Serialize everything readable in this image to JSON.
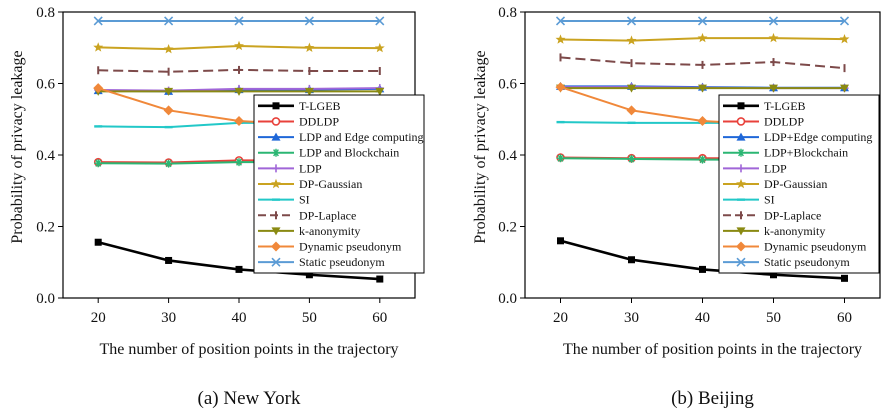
{
  "chart_data": [
    {
      "type": "line",
      "caption": "(a)  New York",
      "xlabel": "The number of position points in the trajectory",
      "ylabel": "Probability of privacy leakage",
      "x": [
        20,
        30,
        40,
        50,
        60
      ],
      "xticks": [
        20,
        30,
        40,
        50,
        60
      ],
      "yticks": [
        0.0,
        0.2,
        0.4,
        0.6,
        0.8
      ],
      "yticklabels": [
        "0.0",
        "0.2",
        "0.4",
        "0.6",
        "0.8"
      ],
      "xlim": [
        15,
        65
      ],
      "ylim": [
        0,
        0.8
      ],
      "legend_position": "right",
      "series": [
        {
          "name": "T-LGEB",
          "color": "#000000",
          "marker": "square",
          "values": [
            0.156,
            0.105,
            0.08,
            0.065,
            0.053
          ]
        },
        {
          "name": "DDLDP",
          "color": "#e8413b",
          "marker": "circle",
          "values": [
            0.38,
            0.379,
            0.385,
            0.385,
            0.385
          ]
        },
        {
          "name": "LDP and Edge computing",
          "color": "#1f67d8",
          "marker": "triangle",
          "values": [
            0.58,
            0.578,
            0.583,
            0.583,
            0.585
          ]
        },
        {
          "name": "LDP and Blockchain",
          "color": "#2bb673",
          "marker": "star6",
          "values": [
            0.377,
            0.376,
            0.38,
            0.38,
            0.38
          ]
        },
        {
          "name": "LDP",
          "color": "#a066d8",
          "marker": "plus",
          "values": [
            0.582,
            0.58,
            0.585,
            0.585,
            0.587
          ]
        },
        {
          "name": "DP-Gaussian",
          "color": "#caa320",
          "marker": "star5",
          "values": [
            0.701,
            0.696,
            0.705,
            0.7,
            0.699
          ]
        },
        {
          "name": "SI",
          "color": "#22c8c8",
          "marker": "dash",
          "values": [
            0.48,
            0.478,
            0.49,
            0.49,
            0.49
          ]
        },
        {
          "name": "DP-Laplace",
          "color": "#7d4a4a",
          "marker": "vbar",
          "values": [
            0.637,
            0.633,
            0.638,
            0.635,
            0.635
          ]
        },
        {
          "name": "k-anonymity",
          "color": "#8a8a12",
          "marker": "tridown",
          "values": [
            0.578,
            0.578,
            0.578,
            0.578,
            0.578
          ]
        },
        {
          "name": "Dynamic pseudonym",
          "color": "#f0883a",
          "marker": "diamond",
          "values": [
            0.587,
            0.525,
            0.495,
            0.485,
            0.48
          ]
        },
        {
          "name": "Static pseudonym",
          "color": "#5b9bd5",
          "marker": "x",
          "values": [
            0.775,
            0.775,
            0.775,
            0.775,
            0.775
          ]
        }
      ]
    },
    {
      "type": "line",
      "caption": "(b)  Beijing",
      "xlabel": "The number of position points in the trajectory",
      "ylabel": "Probability of privacy leakage",
      "x": [
        20,
        30,
        40,
        50,
        60
      ],
      "xticks": [
        20,
        30,
        40,
        50,
        60
      ],
      "yticks": [
        0.0,
        0.2,
        0.4,
        0.6,
        0.8
      ],
      "yticklabels": [
        "0.0",
        "0.2",
        "0.4",
        "0.6",
        "0.8"
      ],
      "xlim": [
        15,
        65
      ],
      "ylim": [
        0,
        0.8
      ],
      "legend_position": "right",
      "series": [
        {
          "name": "T-LGEB",
          "color": "#000000",
          "marker": "square",
          "values": [
            0.16,
            0.107,
            0.08,
            0.065,
            0.055
          ]
        },
        {
          "name": "DDLDP",
          "color": "#e8413b",
          "marker": "circle",
          "values": [
            0.393,
            0.391,
            0.391,
            0.391,
            0.392
          ]
        },
        {
          "name": "LDP+Edge computing",
          "color": "#1f67d8",
          "marker": "triangle",
          "values": [
            0.592,
            0.592,
            0.59,
            0.588,
            0.588
          ]
        },
        {
          "name": "LDP+Blockchain",
          "color": "#2bb673",
          "marker": "star6",
          "values": [
            0.391,
            0.389,
            0.387,
            0.387,
            0.387
          ]
        },
        {
          "name": "LDP",
          "color": "#a066d8",
          "marker": "plus",
          "values": [
            0.59,
            0.59,
            0.588,
            0.587,
            0.587
          ]
        },
        {
          "name": "DP-Gaussian",
          "color": "#caa320",
          "marker": "star5",
          "values": [
            0.723,
            0.72,
            0.727,
            0.727,
            0.724
          ]
        },
        {
          "name": "SI",
          "color": "#22c8c8",
          "marker": "dash",
          "values": [
            0.492,
            0.49,
            0.49,
            0.49,
            0.49
          ]
        },
        {
          "name": "DP-Laplace",
          "color": "#7d4a4a",
          "marker": "vbar",
          "values": [
            0.673,
            0.657,
            0.652,
            0.66,
            0.643
          ]
        },
        {
          "name": "k-anonymity",
          "color": "#8a8a12",
          "marker": "tridown",
          "values": [
            0.587,
            0.587,
            0.587,
            0.587,
            0.587
          ]
        },
        {
          "name": "Dynamic pseudonym",
          "color": "#f0883a",
          "marker": "diamond",
          "values": [
            0.59,
            0.525,
            0.495,
            0.485,
            0.48
          ]
        },
        {
          "name": "Static pseudonym",
          "color": "#5b9bd5",
          "marker": "x",
          "values": [
            0.775,
            0.775,
            0.775,
            0.775,
            0.775
          ]
        }
      ]
    }
  ]
}
